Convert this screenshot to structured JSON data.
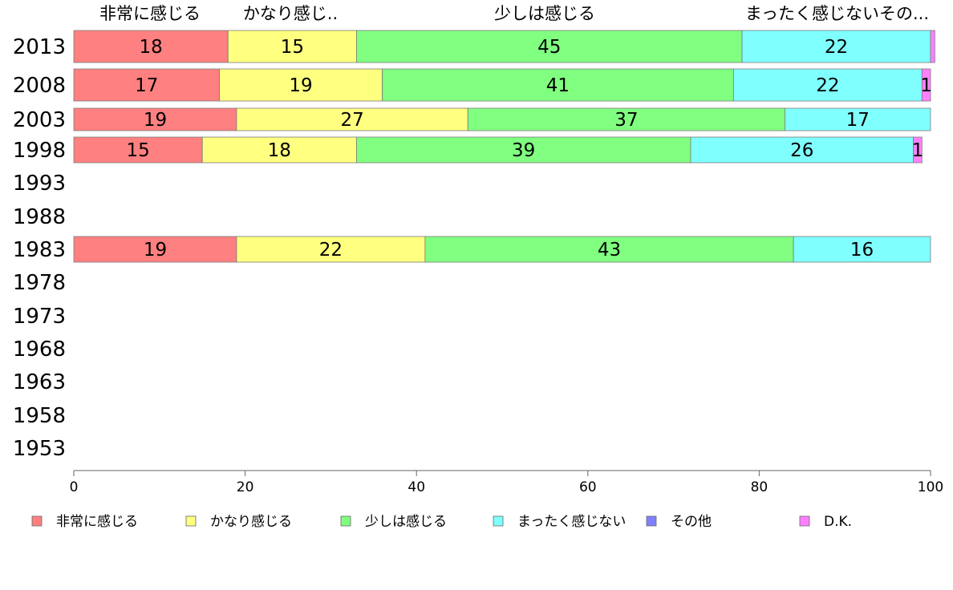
{
  "chart_data": {
    "type": "bar",
    "orientation": "horizontal",
    "stacked": true,
    "xlim": [
      0,
      100
    ],
    "xticks": [
      "0",
      "20",
      "40",
      "60",
      "80",
      "100"
    ],
    "categories": [
      "2013",
      "2008",
      "2003",
      "1998",
      "1993",
      "1988",
      "1983",
      "1978",
      "1973",
      "1968",
      "1963",
      "1958",
      "1953"
    ],
    "top_labels": [
      "非常に感じる",
      "かなり感じ..",
      "少しは感じる",
      "まったく感じないその..."
    ],
    "series": [
      {
        "name": "非常に感じる",
        "color": "#ff8080",
        "values": [
          18,
          17,
          19,
          15,
          null,
          null,
          19,
          null,
          null,
          null,
          null,
          null,
          null
        ]
      },
      {
        "name": "かなり感じる",
        "color": "#ffff80",
        "values": [
          15,
          19,
          27,
          18,
          null,
          null,
          22,
          null,
          null,
          null,
          null,
          null,
          null
        ]
      },
      {
        "name": "少しは感じる",
        "color": "#80ff80",
        "values": [
          45,
          41,
          37,
          39,
          null,
          null,
          43,
          null,
          null,
          null,
          null,
          null,
          null
        ]
      },
      {
        "name": "まったく感じない",
        "color": "#80ffff",
        "values": [
          22,
          22,
          17,
          26,
          null,
          null,
          16,
          null,
          null,
          null,
          null,
          null,
          null
        ]
      },
      {
        "name": "その他",
        "color": "#8080ff",
        "values": [
          0,
          0,
          0,
          0,
          null,
          null,
          0,
          null,
          null,
          null,
          null,
          null,
          null
        ]
      },
      {
        "name": "D.K.",
        "color": "#ff80ff",
        "values": [
          0.5,
          1,
          0,
          1,
          null,
          null,
          0,
          null,
          null,
          null,
          null,
          null,
          null
        ]
      }
    ],
    "data_labels": [
      [
        "18",
        "15",
        "45",
        "22",
        "",
        ""
      ],
      [
        "17",
        "19",
        "41",
        "22",
        "",
        "1"
      ],
      [
        "19",
        "27",
        "37",
        "17",
        "",
        ""
      ],
      [
        "15",
        "18",
        "39",
        "26",
        "",
        "1"
      ],
      [
        "",
        "",
        "",
        "",
        "",
        ""
      ],
      [
        "",
        "",
        "",
        "",
        "",
        ""
      ],
      [
        "19",
        "22",
        "43",
        "16",
        "",
        ""
      ],
      [
        "",
        "",
        "",
        "",
        "",
        ""
      ],
      [
        "",
        "",
        "",
        "",
        "",
        ""
      ],
      [
        "",
        "",
        "",
        "",
        "",
        ""
      ],
      [
        "",
        "",
        "",
        "",
        "",
        ""
      ],
      [
        "",
        "",
        "",
        "",
        "",
        ""
      ],
      [
        "",
        "",
        "",
        "",
        "",
        ""
      ]
    ],
    "legend_position": "bottom"
  }
}
